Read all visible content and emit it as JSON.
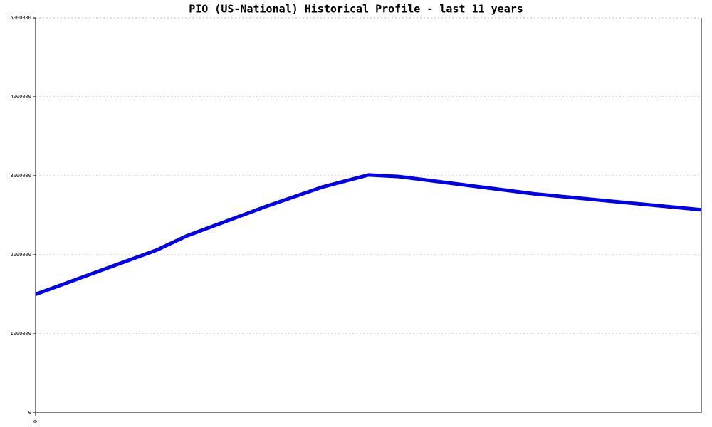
{
  "chart_data": {
    "type": "line",
    "title": "PIO (US-National) Historical Profile - last 11 years",
    "x": [
      0,
      2,
      2.5,
      3.8,
      4.75,
      5.5,
      6,
      8.25,
      11
    ],
    "series": [
      {
        "color": "#0000ee",
        "values": [
          1500000,
          2060000,
          2240000,
          2610000,
          2860000,
          3010000,
          2990000,
          2770000,
          2570000
        ]
      }
    ],
    "xlim": [
      0,
      11
    ],
    "xticks": [
      0
    ],
    "ylim": [
      0,
      5000000
    ],
    "yticks": [
      0,
      1000000,
      2000000,
      3000000,
      4000000,
      5000000
    ],
    "grid": true
  }
}
